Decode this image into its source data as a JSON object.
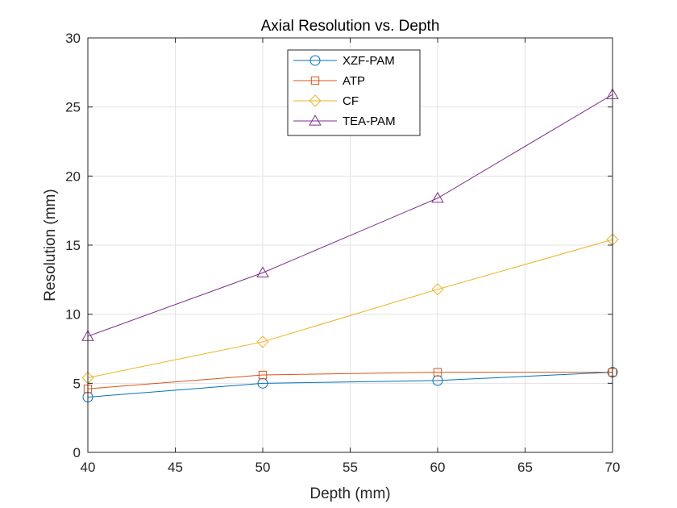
{
  "chart_data": {
    "type": "line",
    "title": "Axial Resolution vs. Depth",
    "xlabel": "Depth (mm)",
    "ylabel": "Resolution (mm)",
    "xlim": [
      40,
      70
    ],
    "ylim": [
      0,
      30
    ],
    "xticks": [
      40,
      45,
      50,
      55,
      60,
      65,
      70
    ],
    "yticks": [
      0,
      5,
      10,
      15,
      20,
      25,
      30
    ],
    "grid": true,
    "legend_position": "top-center",
    "x": [
      40,
      50,
      60,
      70
    ],
    "series": [
      {
        "name": "XZF-PAM",
        "marker": "circle",
        "color": "#0072BD",
        "values": [
          4.0,
          5.0,
          5.2,
          5.8
        ]
      },
      {
        "name": "ATP",
        "marker": "square",
        "color": "#D95319",
        "values": [
          4.6,
          5.6,
          5.8,
          5.8
        ]
      },
      {
        "name": "CF",
        "marker": "diamond",
        "color": "#EDB120",
        "values": [
          5.4,
          8.0,
          11.8,
          15.4
        ]
      },
      {
        "name": "TEA-PAM",
        "marker": "triangle",
        "color": "#7E2F8E",
        "values": [
          8.4,
          13.0,
          18.4,
          25.9
        ]
      }
    ]
  }
}
